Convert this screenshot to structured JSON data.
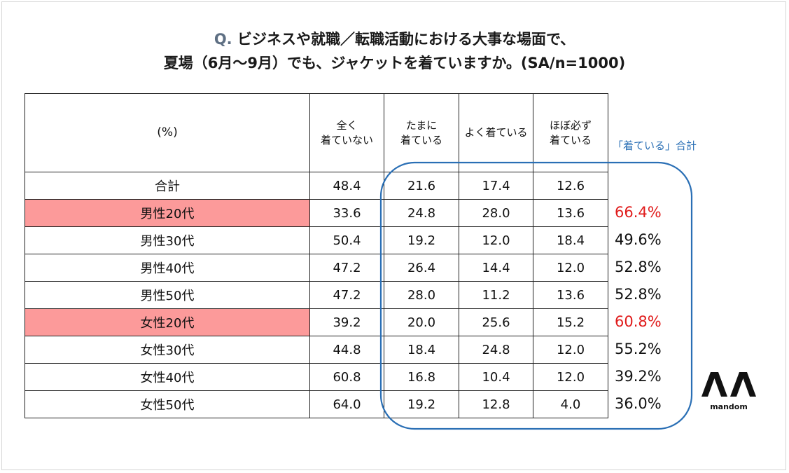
{
  "title": {
    "q_mark": "Q.",
    "line1": " ビジネスや就職／転職活動における大事な場面で、",
    "line2": "夏場（6月～9月）でも、ジャケットを着ていますか。(SA/n=1000)"
  },
  "chart_data": {
    "type": "table",
    "corner_label": "(%)",
    "columns": [
      {
        "line1": "全く",
        "line2": "着ていない"
      },
      {
        "line1": "たまに",
        "line2": "着ている"
      },
      {
        "line1": "よく着ている",
        "line2": ""
      },
      {
        "line1": "ほぼ必ず",
        "line2": "着ている"
      }
    ],
    "rows": [
      {
        "label": "合計",
        "values": [
          "48.4",
          "21.6",
          "17.4",
          "12.6"
        ],
        "total": "",
        "highlight": false
      },
      {
        "label": "男性20代",
        "values": [
          "33.6",
          "24.8",
          "28.0",
          "13.6"
        ],
        "total": "66.4%",
        "highlight": true
      },
      {
        "label": "男性30代",
        "values": [
          "50.4",
          "19.2",
          "12.0",
          "18.4"
        ],
        "total": "49.6%",
        "highlight": false
      },
      {
        "label": "男性40代",
        "values": [
          "47.2",
          "26.4",
          "14.4",
          "12.0"
        ],
        "total": "52.8%",
        "highlight": false
      },
      {
        "label": "男性50代",
        "values": [
          "47.2",
          "28.0",
          "11.2",
          "13.6"
        ],
        "total": "52.8%",
        "highlight": false
      },
      {
        "label": "女性20代",
        "values": [
          "39.2",
          "20.0",
          "25.6",
          "15.2"
        ],
        "total": "60.8%",
        "highlight": true
      },
      {
        "label": "女性30代",
        "values": [
          "44.8",
          "18.4",
          "24.8",
          "12.0"
        ],
        "total": "55.2%",
        "highlight": false
      },
      {
        "label": "女性40代",
        "values": [
          "60.8",
          "16.8",
          "10.4",
          "12.0"
        ],
        "total": "39.2%",
        "highlight": false
      },
      {
        "label": "女性50代",
        "values": [
          "64.0",
          "19.2",
          "12.8",
          "4.0"
        ],
        "total": "36.0%",
        "highlight": false
      }
    ],
    "totals_header": "「着ている」合計",
    "highlight_color": "#fc9a9a",
    "total_highlight_color": "#e01b1b",
    "box_color": "#2a6fb5"
  },
  "logo": {
    "text": "mandom"
  }
}
